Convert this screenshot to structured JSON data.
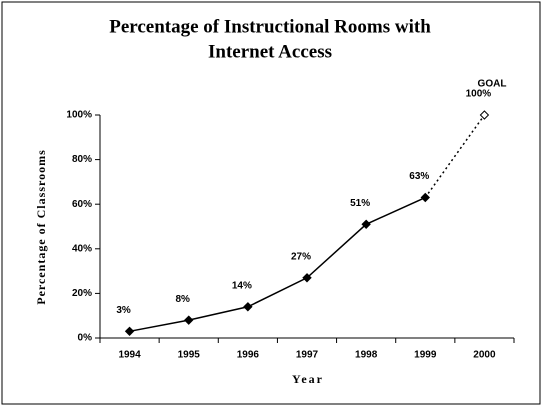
{
  "chart_data": {
    "type": "line",
    "title": [
      "Percentage of Instructional Rooms with",
      "Internet Access"
    ],
    "annotation": "GOAL",
    "x_label": "Year",
    "y_label": "Percentage of Classrooms",
    "categories": [
      "1994",
      "1995",
      "1996",
      "1997",
      "1998",
      "1999",
      "2000"
    ],
    "values": [
      3,
      8,
      14,
      27,
      51,
      63,
      100
    ],
    "value_labels": [
      "3%",
      "8%",
      "14%",
      "27%",
      "51%",
      "63%",
      "100%"
    ],
    "color": "#000000",
    "dotted_last_segment": true,
    "ylim": [
      0,
      100
    ],
    "yticks": [
      {
        "value": 0,
        "label": "0%"
      },
      {
        "value": 20,
        "label": "20%"
      },
      {
        "value": 40,
        "label": "40%"
      },
      {
        "value": 60,
        "label": "60%"
      },
      {
        "value": 80,
        "label": "80%"
      },
      {
        "value": 100,
        "label": "100%"
      }
    ],
    "grid": false
  }
}
